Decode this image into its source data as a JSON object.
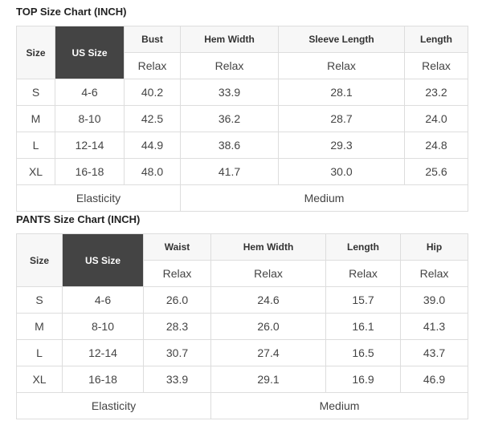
{
  "top": {
    "title": "TOP Size Chart (INCH)",
    "headers": [
      "Size",
      "US Size",
      "Bust",
      "Hem Width",
      "Sleeve Length",
      "Length"
    ],
    "sub": [
      "Relax",
      "Relax",
      "Relax",
      "Relax"
    ],
    "rows": [
      [
        "S",
        "4-6",
        "40.2",
        "33.9",
        "28.1",
        "23.2"
      ],
      [
        "M",
        "8-10",
        "42.5",
        "36.2",
        "28.7",
        "24.0"
      ],
      [
        "L",
        "12-14",
        "44.9",
        "38.6",
        "29.3",
        "24.8"
      ],
      [
        "XL",
        "16-18",
        "48.0",
        "41.7",
        "30.0",
        "25.6"
      ]
    ],
    "elasticity_label": "Elasticity",
    "elasticity_value": "Medium"
  },
  "pants": {
    "title": "PANTS Size Chart (INCH)",
    "headers": [
      "Size",
      "US Size",
      "Waist",
      "Hem Width",
      "Length",
      "Hip"
    ],
    "sub": [
      "Relax",
      "Relax",
      "Relax",
      "Relax"
    ],
    "rows": [
      [
        "S",
        "4-6",
        "26.0",
        "24.6",
        "15.7",
        "39.0"
      ],
      [
        "M",
        "8-10",
        "28.3",
        "26.0",
        "16.1",
        "41.3"
      ],
      [
        "L",
        "12-14",
        "30.7",
        "27.4",
        "16.5",
        "43.7"
      ],
      [
        "XL",
        "16-18",
        "33.9",
        "29.1",
        "16.9",
        "46.9"
      ]
    ],
    "elasticity_label": "Elasticity",
    "elasticity_value": "Medium"
  }
}
